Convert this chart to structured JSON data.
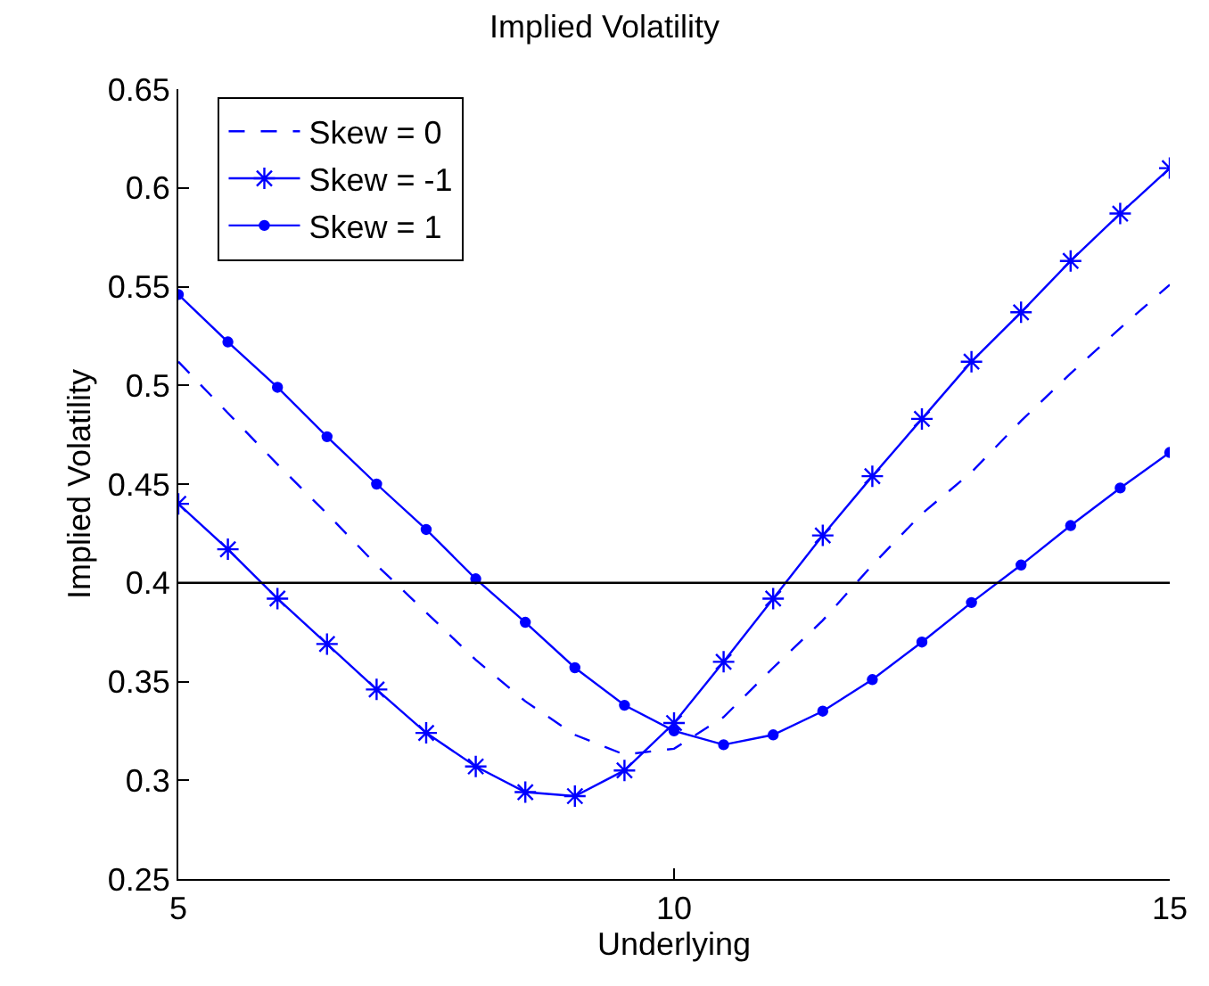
{
  "chart_data": {
    "type": "line",
    "title": "Implied Volatility",
    "xlabel": "Underlying",
    "ylabel": "Implied Volatility",
    "x": [
      5,
      5.5,
      6,
      6.5,
      7,
      7.5,
      8,
      8.5,
      9,
      9.5,
      10,
      10.5,
      11,
      11.5,
      12,
      12.5,
      13,
      13.5,
      14,
      14.5,
      15
    ],
    "series": [
      {
        "name": "Skew = 0",
        "color": "#0000ff",
        "line_style": "dashed",
        "marker": "none",
        "values": [
          0.512,
          0.486,
          0.46,
          0.435,
          0.409,
          0.385,
          0.361,
          0.34,
          0.323,
          0.313,
          0.316,
          0.332,
          0.357,
          0.381,
          0.409,
          0.435,
          0.456,
          0.482,
          0.506,
          0.529,
          0.551
        ]
      },
      {
        "name": "Skew = -1",
        "color": "#0000ff",
        "line_style": "solid",
        "marker": "cross",
        "values": [
          0.44,
          0.417,
          0.392,
          0.369,
          0.346,
          0.324,
          0.307,
          0.294,
          0.292,
          0.305,
          0.329,
          0.36,
          0.392,
          0.424,
          0.454,
          0.483,
          0.512,
          0.537,
          0.563,
          0.587,
          0.61
        ]
      },
      {
        "name": "Skew = 1",
        "color": "#0000ff",
        "line_style": "solid",
        "marker": "circle",
        "values": [
          0.546,
          0.522,
          0.499,
          0.474,
          0.45,
          0.427,
          0.402,
          0.38,
          0.357,
          0.338,
          0.325,
          0.318,
          0.323,
          0.335,
          0.351,
          0.37,
          0.39,
          0.409,
          0.429,
          0.448,
          0.466
        ]
      }
    ],
    "xlim": [
      5,
      15
    ],
    "xticks": [
      5,
      10,
      15
    ],
    "ylim": [
      0.25,
      0.65
    ],
    "yticks": [
      0.25,
      0.3,
      0.35,
      0.4,
      0.45,
      0.5,
      0.55,
      0.6,
      0.65
    ],
    "ref_lines": [
      {
        "axis": "y",
        "value": 0.4,
        "color": "#000000",
        "line_style": "solid"
      }
    ],
    "legend": "top left"
  }
}
